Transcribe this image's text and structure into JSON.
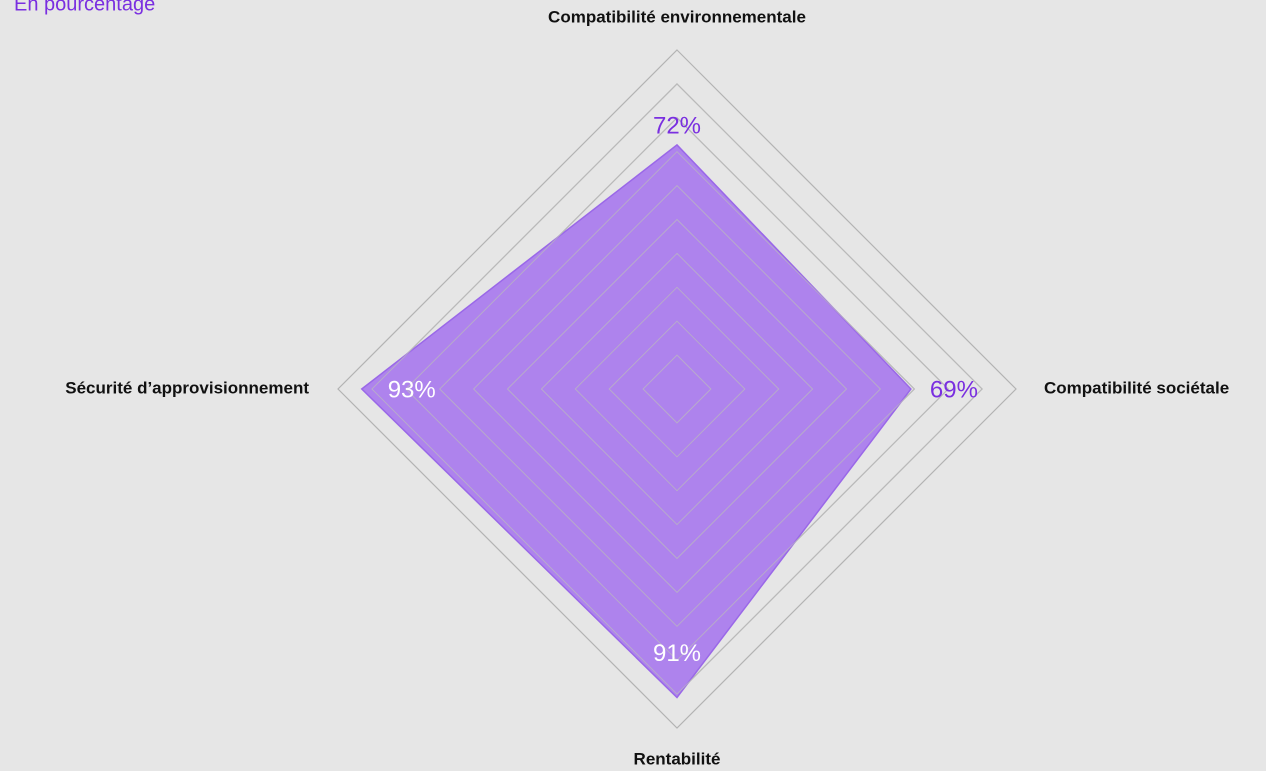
{
  "chart_data": {
    "type": "radar",
    "subtitle": "En pourcentage",
    "categories": [
      "Compatibilité environnementale",
      "Compatibilité sociétale",
      "Rentabilité",
      "Sécurité d’approvisionnement"
    ],
    "values": [
      72,
      69,
      91,
      93
    ],
    "value_labels": [
      "72%",
      "69%",
      "91%",
      "93%"
    ],
    "value_label_colors": [
      "#7a2fe0",
      "#7a2fe0",
      "#ffffff",
      "#ffffff"
    ],
    "color": "#a97bee",
    "rlim": [
      0,
      100
    ],
    "rticks": [
      10,
      20,
      30,
      40,
      50,
      60,
      70,
      80,
      90,
      100
    ],
    "grid": true
  }
}
